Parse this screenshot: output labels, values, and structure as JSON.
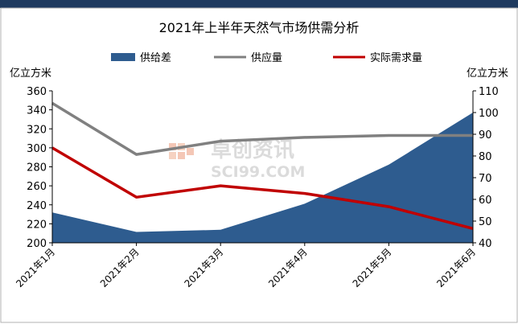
{
  "chart_data": {
    "type": "area",
    "title": "2021年上半年天然气市场供需分析",
    "categories": [
      "2021年1月",
      "2021年2月",
      "2021年3月",
      "2021年4月",
      "2021年5月",
      "2021年6月"
    ],
    "y_left": {
      "label": "亿立方米",
      "min": 200,
      "max": 360,
      "step": 20
    },
    "y_right": {
      "label": "亿立方米",
      "min": 40,
      "max": 110,
      "step": 10
    },
    "series": [
      {
        "name": "供给差",
        "kind": "area",
        "axis": "right",
        "color": "#2E5C8F",
        "values": [
          54,
          45,
          46,
          58,
          76,
          100
        ]
      },
      {
        "name": "供应量",
        "kind": "line",
        "axis": "left",
        "color": "#808080",
        "values": [
          347,
          293,
          307,
          311,
          313,
          313
        ]
      },
      {
        "name": "实际需求量",
        "kind": "line",
        "axis": "left",
        "color": "#C00000",
        "values": [
          300,
          248,
          260,
          252,
          238,
          215
        ]
      }
    ],
    "legend_position": "top",
    "grid": false,
    "watermark": {
      "brand": "卓创资讯",
      "site": "SCI99.COM"
    }
  },
  "colors": {
    "header_bar": "#1F3A5F",
    "border": "#B0B0B0"
  }
}
